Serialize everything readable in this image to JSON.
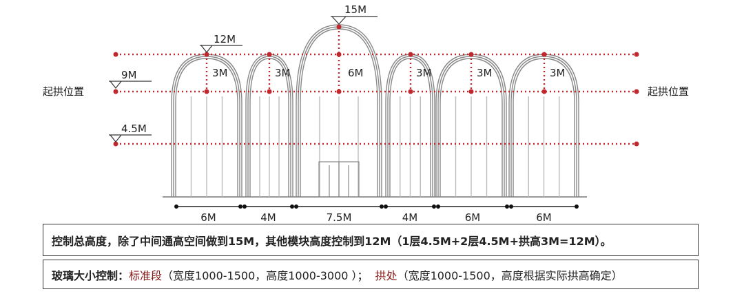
{
  "heights": {
    "top": "15M",
    "arch_top": "12M",
    "spring": "9M",
    "floor": "4.5M"
  },
  "arch_heights": {
    "side": "3M",
    "center": "6M"
  },
  "side_label": "起拱位置",
  "widths": [
    "6M",
    "4M",
    "7.5M",
    "4M",
    "6M",
    "6M"
  ],
  "notes": {
    "line1": "控制总高度，除了中间通高空间做到15M，其他模块高度控制到12M（1层4.5M+2层4.5M+拱高3M=12M）。",
    "line2_label": "玻璃大小控制：",
    "line2_seg1": "标准段",
    "line2_text1": "（宽度1000-1500，高度1000-3000 ）；",
    "line2_seg2": "拱处",
    "line2_text2": "（宽度1000-1500，高度根据实际拱高确定）"
  },
  "colors": {
    "dim_red": "#c0282d",
    "text_red": "#8b1a1a"
  }
}
